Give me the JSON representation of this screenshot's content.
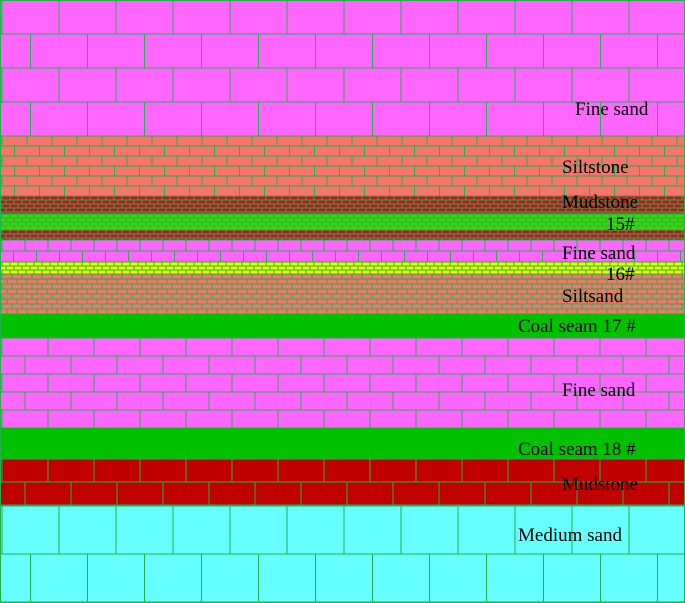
{
  "diagram": {
    "layers": [
      {
        "name": "fine-sand-top",
        "label": "Fine sand",
        "fill": "#ff66ff"
      },
      {
        "name": "siltstone",
        "label": "Siltstone",
        "fill": "#f7746a"
      },
      {
        "name": "mudstone-upper",
        "label": "Mudstone",
        "fill": "#c1121d"
      },
      {
        "name": "coal-15",
        "label": "15#",
        "fill": "#3fd700"
      },
      {
        "name": "fine-sand-thin",
        "label": "Fine sand",
        "fill": "#ff66ff"
      },
      {
        "name": "coal-16",
        "label": "16#",
        "fill": "#f0ff00"
      },
      {
        "name": "siltsand",
        "label": "Siltsand",
        "fill": "#f7746a"
      },
      {
        "name": "coal-seam-17",
        "label": "Coal seam 17 #",
        "fill": "#00c000"
      },
      {
        "name": "fine-sand-middle",
        "label": "Fine sand",
        "fill": "#ff66ff"
      },
      {
        "name": "coal-seam-18",
        "label": "Coal seam 18 #",
        "fill": "#00c000"
      },
      {
        "name": "mudstone-lower",
        "label": "Mudstone",
        "fill": "#c00000"
      },
      {
        "name": "medium-sand",
        "label": "Medium sand",
        "fill": "#66ffff"
      }
    ],
    "grid_color": "#22b14c"
  }
}
